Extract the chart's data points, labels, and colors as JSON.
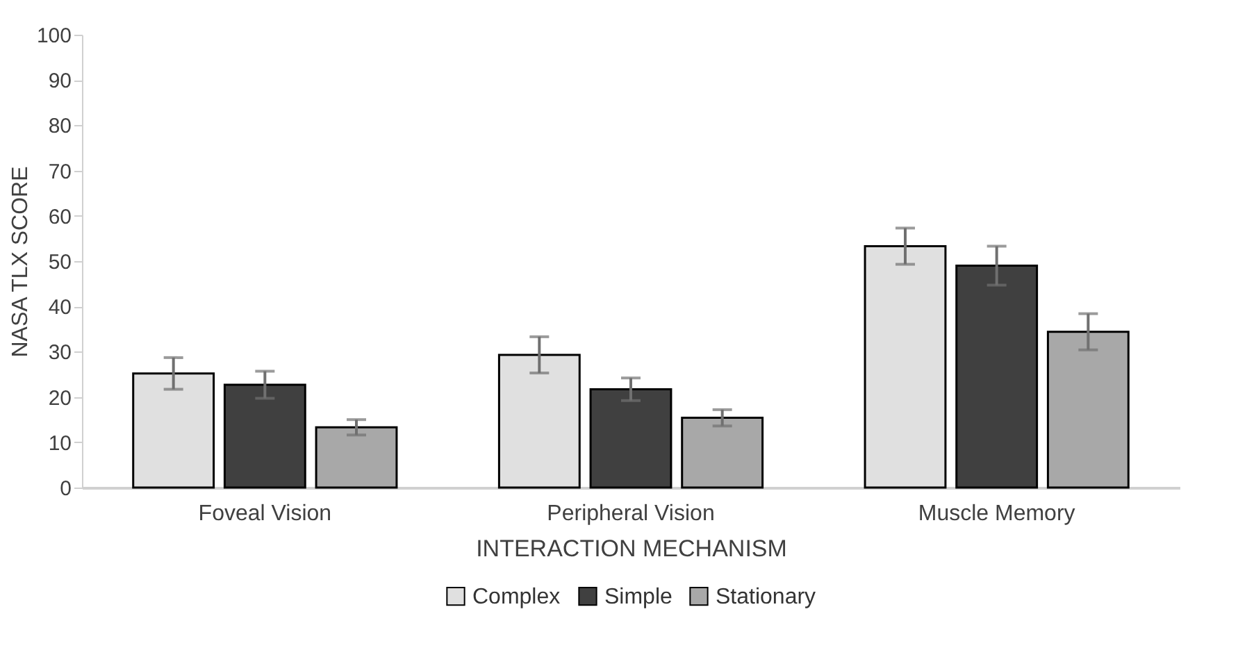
{
  "chart_data": {
    "type": "bar",
    "xlabel": "INTERACTION MECHANISM",
    "ylabel": "NASA TLX SCORE",
    "categories": [
      "Foveal Vision",
      "Peripheral Vision",
      "Muscle Memory"
    ],
    "series": [
      {
        "name": "Complex",
        "color": "#e0e0e0",
        "values": [
          25.2,
          29.3,
          53.3
        ],
        "errors": [
          3.5,
          4,
          4
        ]
      },
      {
        "name": "Simple",
        "color": "#404040",
        "values": [
          22.7,
          21.7,
          49
        ],
        "errors": [
          3,
          2.5,
          4.3
        ]
      },
      {
        "name": "Stationary",
        "color": "#a8a8a8",
        "values": [
          13.3,
          15.4,
          34.4
        ],
        "errors": [
          1.7,
          1.8,
          4
        ]
      }
    ],
    "ylim": [
      0,
      100
    ],
    "yticks": [
      0,
      10,
      20,
      30,
      40,
      50,
      60,
      70,
      80,
      90,
      100
    ],
    "grid": false,
    "legend": "bottom"
  }
}
